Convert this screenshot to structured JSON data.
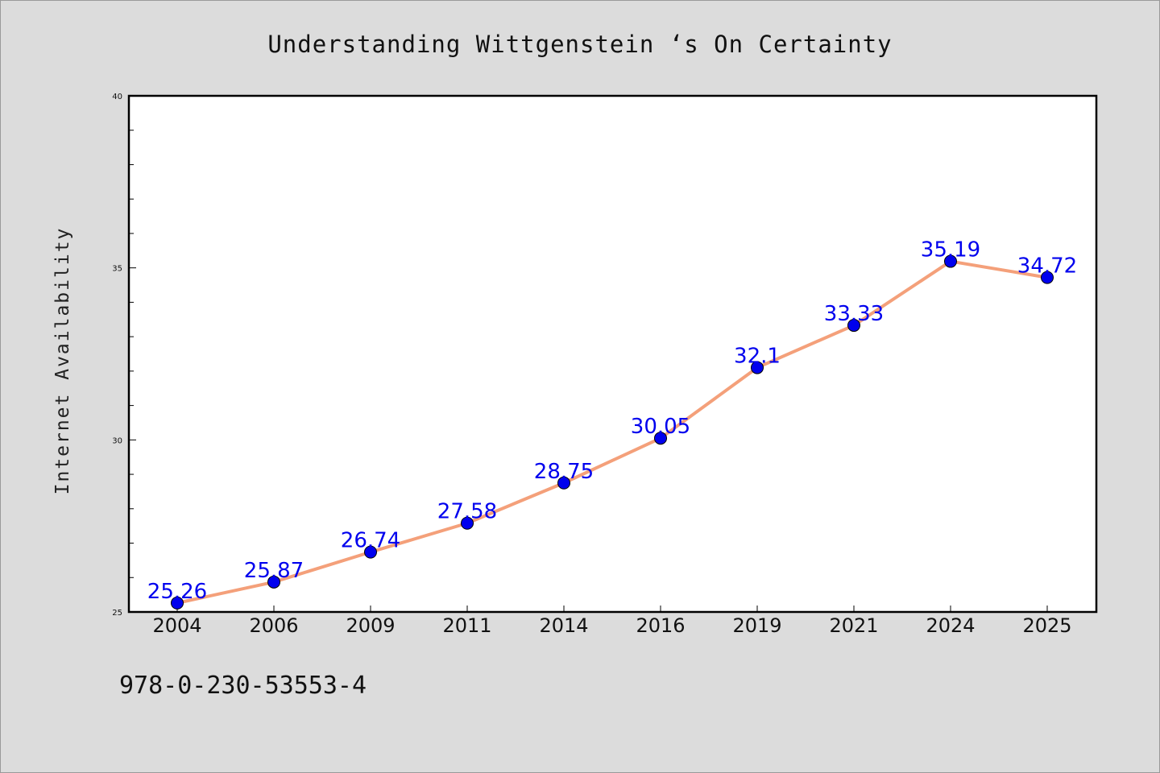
{
  "chart_data": {
    "type": "line",
    "title": "Understanding Wittgenstein ‘s On Certainty",
    "xlabel": "",
    "ylabel": "Internet Availability",
    "categories": [
      "2004",
      "2006",
      "2009",
      "2011",
      "2014",
      "2016",
      "2019",
      "2021",
      "2024",
      "2025"
    ],
    "series": [
      {
        "values": [
          25.26,
          25.87,
          26.74,
          27.58,
          28.75,
          30.05,
          32.1,
          33.33,
          35.19,
          34.72
        ],
        "data_labels": [
          "25.26",
          "25.87",
          "26.74",
          "27.58",
          "28.75",
          "30.05",
          "32.1",
          "33.33",
          "35.19",
          "34.72"
        ],
        "line_color": "#f4a07a",
        "marker_color": "#0000ee"
      }
    ],
    "ylim": [
      25,
      40
    ],
    "yticks": [
      "25",
      "30",
      "35",
      "40"
    ],
    "grid": false,
    "legend": "none",
    "background_color": "#dcdcdc",
    "plot_background_color": "#ffffff"
  },
  "footer": {
    "isbn": "978-0-230-53553-4"
  }
}
